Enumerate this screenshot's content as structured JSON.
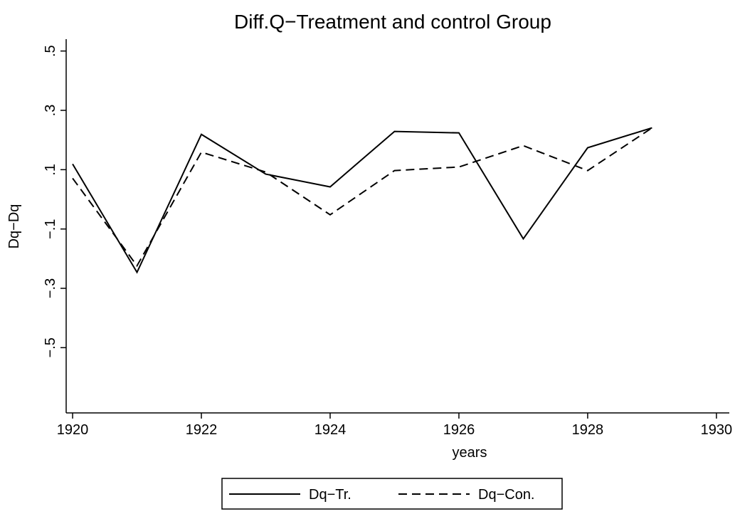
{
  "chart_data": {
    "type": "line",
    "title": "Diff.Q−Treatment and control Group",
    "x_label": "years",
    "y_label": "Dq−Dq",
    "x": [
      1920,
      1921,
      1922,
      1923,
      1924,
      1925,
      1926,
      1927,
      1928,
      1929
    ],
    "series": [
      {
        "name": "Dq−Tr.",
        "color": "#000000",
        "dash": "solid",
        "values": [
          0.119,
          -0.246,
          0.219,
          0.085,
          0.042,
          0.229,
          0.224,
          -0.133,
          0.174,
          0.241
        ]
      },
      {
        "name": "Dq−Con.",
        "color": "#000000",
        "dash": "dashed",
        "values": [
          0.071,
          -0.224,
          0.159,
          0.092,
          -0.052,
          0.097,
          0.109,
          0.181,
          0.097,
          0.241
        ]
      }
    ],
    "xlim": [
      1919.9,
      1930.2
    ],
    "ylim": [
      -0.72,
      0.54
    ],
    "xticks": [
      1920,
      1922,
      1924,
      1926,
      1928,
      1930
    ],
    "yticks": [
      {
        "value": 0.5,
        "label": ".5"
      },
      {
        "value": 0.3,
        "label": ".3"
      },
      {
        "value": 0.1,
        "label": ".1"
      },
      {
        "value": -0.1,
        "label": "−.1"
      },
      {
        "value": -0.3,
        "label": "−.3"
      },
      {
        "value": -0.5,
        "label": "−.5"
      }
    ],
    "legend": "bottom"
  }
}
